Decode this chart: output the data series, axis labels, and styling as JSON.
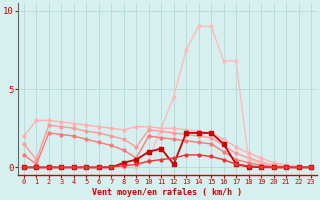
{
  "title": "",
  "xlabel": "Vent moyen/en rafales ( km/h )",
  "xlim": [
    -0.5,
    23.5
  ],
  "ylim": [
    -0.5,
    10.5
  ],
  "bg_color": "#d6efef",
  "grid_color": "#b8dcdc",
  "x_ticks": [
    0,
    1,
    2,
    3,
    4,
    5,
    6,
    7,
    8,
    9,
    10,
    11,
    12,
    13,
    14,
    15,
    16,
    17,
    18,
    19,
    20,
    21,
    22,
    23
  ],
  "y_ticks": [
    0,
    5,
    10
  ],
  "series": [
    {
      "x": [
        0,
        1,
        2,
        3,
        4,
        5,
        6,
        7,
        8,
        9,
        10,
        11,
        12,
        13,
        14,
        15,
        16,
        17,
        18,
        19,
        20,
        21,
        22,
        23
      ],
      "y": [
        2.0,
        3.0,
        3.0,
        2.9,
        2.8,
        2.7,
        2.6,
        2.5,
        2.4,
        2.6,
        2.6,
        2.5,
        2.5,
        2.4,
        2.3,
        2.2,
        1.8,
        1.3,
        0.9,
        0.6,
        0.3,
        0.15,
        0.05,
        0.05
      ],
      "color": "#ffb0b0",
      "linewidth": 1.0,
      "marker": "o",
      "markersize": 2.0
    },
    {
      "x": [
        0,
        1,
        2,
        3,
        4,
        5,
        6,
        7,
        8,
        9,
        10,
        11,
        12,
        13,
        14,
        15,
        16,
        17,
        18,
        19,
        20,
        21,
        22,
        23
      ],
      "y": [
        1.5,
        0.5,
        2.7,
        2.6,
        2.5,
        2.3,
        2.2,
        2.0,
        1.8,
        1.3,
        2.4,
        2.3,
        2.2,
        2.1,
        2.0,
        1.9,
        1.4,
        0.9,
        0.6,
        0.35,
        0.15,
        0.05,
        0.02,
        0.02
      ],
      "color": "#ff9999",
      "linewidth": 1.0,
      "marker": "o",
      "markersize": 2.0
    },
    {
      "x": [
        0,
        1,
        2,
        3,
        4,
        5,
        6,
        7,
        8,
        9,
        10,
        11,
        12,
        13,
        14,
        15,
        16,
        17,
        18,
        19,
        20,
        21,
        22,
        23
      ],
      "y": [
        0.0,
        0.0,
        0.0,
        0.0,
        0.0,
        0.0,
        0.0,
        0.0,
        0.0,
        0.0,
        0.5,
        2.5,
        4.5,
        7.5,
        9.0,
        9.0,
        6.8,
        6.8,
        0.5,
        0.3,
        0.1,
        0.05,
        0.05,
        0.0
      ],
      "color": "#ffbbbb",
      "linewidth": 1.0,
      "marker": "o",
      "markersize": 2.0
    },
    {
      "x": [
        0,
        1,
        2,
        3,
        4,
        5,
        6,
        7,
        8,
        9,
        10,
        11,
        12,
        13,
        14,
        15,
        16,
        17,
        18,
        19,
        20,
        21,
        22,
        23
      ],
      "y": [
        0.8,
        0.2,
        2.2,
        2.1,
        2.0,
        1.8,
        1.6,
        1.4,
        1.1,
        0.6,
        2.0,
        1.9,
        1.8,
        1.7,
        1.6,
        1.5,
        1.0,
        0.5,
        0.3,
        0.15,
        0.05,
        0.02,
        0.0,
        0.0
      ],
      "color": "#ff7777",
      "linewidth": 1.0,
      "marker": "o",
      "markersize": 2.0
    },
    {
      "x": [
        0,
        1,
        2,
        3,
        4,
        5,
        6,
        7,
        8,
        9,
        10,
        11,
        12,
        13,
        14,
        15,
        16,
        17,
        18,
        19,
        20,
        21,
        22,
        23
      ],
      "y": [
        0.0,
        0.0,
        0.0,
        0.0,
        0.0,
        0.0,
        0.0,
        0.0,
        0.3,
        0.5,
        1.0,
        1.2,
        0.2,
        2.2,
        2.2,
        2.2,
        1.5,
        0.2,
        0.05,
        0.02,
        0.0,
        0.0,
        0.0,
        0.0
      ],
      "color": "#cc0000",
      "linewidth": 1.3,
      "marker": "s",
      "markersize": 2.5
    },
    {
      "x": [
        0,
        1,
        2,
        3,
        4,
        5,
        6,
        7,
        8,
        9,
        10,
        11,
        12,
        13,
        14,
        15,
        16,
        17,
        18,
        19,
        20,
        21,
        22,
        23
      ],
      "y": [
        0.0,
        0.0,
        0.0,
        0.0,
        0.0,
        0.0,
        0.0,
        0.05,
        0.1,
        0.2,
        0.4,
        0.5,
        0.6,
        0.8,
        0.8,
        0.7,
        0.5,
        0.2,
        0.1,
        0.05,
        0.0,
        0.0,
        0.0,
        0.0
      ],
      "color": "#ee3333",
      "linewidth": 1.0,
      "marker": "o",
      "markersize": 2.0
    }
  ],
  "tick_color": "#cc0000",
  "label_color": "#cc0000"
}
